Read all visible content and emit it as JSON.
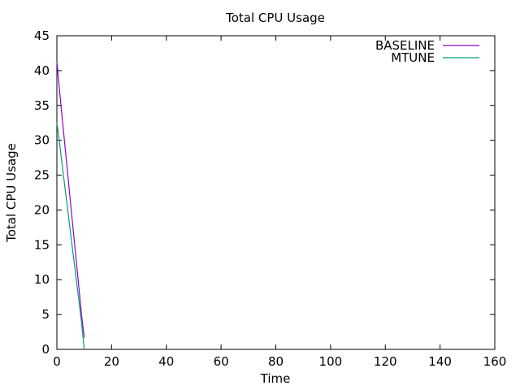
{
  "chart_data": {
    "type": "line",
    "title": "Total CPU Usage",
    "xlabel": "Time",
    "ylabel": "Total CPU Usage",
    "xlim": [
      0,
      160
    ],
    "ylim": [
      0,
      45
    ],
    "xticks": [
      0,
      20,
      40,
      60,
      80,
      100,
      120,
      140,
      160
    ],
    "yticks": [
      0,
      5,
      10,
      15,
      20,
      25,
      30,
      35,
      40,
      45
    ],
    "grid": false,
    "legend_position": "top-right",
    "series": [
      {
        "name": "BASELINE",
        "color": "#9400d3",
        "x": [
          0,
          1,
          2,
          3,
          4,
          5,
          6,
          7,
          8,
          9,
          10
        ],
        "y": [
          41.3,
          37.0,
          33.0,
          29.0,
          25.0,
          21.0,
          17.0,
          13.0,
          9.0,
          5.0,
          1.7
        ]
      },
      {
        "name": "MTUNE",
        "color": "#009e73",
        "x": [
          0,
          1,
          2,
          3,
          4,
          5,
          6,
          7,
          8,
          9,
          10
        ],
        "y": [
          32.5,
          29.5,
          26.3,
          23.1,
          19.9,
          16.7,
          13.5,
          10.3,
          7.1,
          3.9,
          0
        ]
      }
    ]
  }
}
